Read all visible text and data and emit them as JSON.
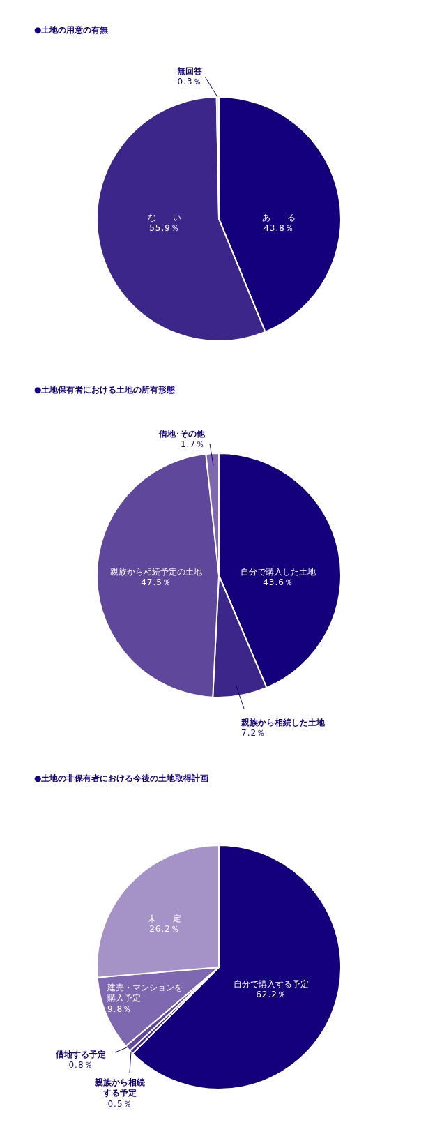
{
  "chart_data": [
    {
      "type": "pie",
      "title": "●土地の用意の有無",
      "categories": [
        "あ　　る",
        "な　　い",
        "無回答"
      ],
      "values": [
        43.8,
        55.9,
        0.3
      ],
      "colors": [
        "#14007a",
        "#3d2689",
        "#f2e6d0"
      ],
      "value_labels": [
        "43.8％",
        "55.9％",
        "0.3％"
      ]
    },
    {
      "type": "pie",
      "title": "●土地保有者における土地の所有形態",
      "categories": [
        "自分で購入した土地",
        "親族から相続した土地",
        "親族から相続予定の土地",
        "借地･その他"
      ],
      "values": [
        43.6,
        7.2,
        47.5,
        1.7
      ],
      "colors": [
        "#14007a",
        "#3d2689",
        "#5f479c",
        "#7e68b0"
      ],
      "value_labels": [
        "43.6％",
        "7.2％",
        "47.5％",
        "1.7％"
      ]
    },
    {
      "type": "pie",
      "title": "●土地の非保有者における今後の土地取得計画",
      "categories": [
        "自分で購入する予定",
        "親族から相続する予定",
        "借地する予定",
        "建売・マンションを購入予定",
        "未　　定"
      ],
      "values": [
        62.2,
        0.5,
        0.8,
        9.8,
        26.2
      ],
      "colors": [
        "#14007a",
        "#3d2689",
        "#5f479c",
        "#7e68b0",
        "#a592c6"
      ],
      "value_labels": [
        "62.2％",
        "0.5％",
        "0.8％",
        "9.8％",
        "26.2％"
      ]
    }
  ]
}
